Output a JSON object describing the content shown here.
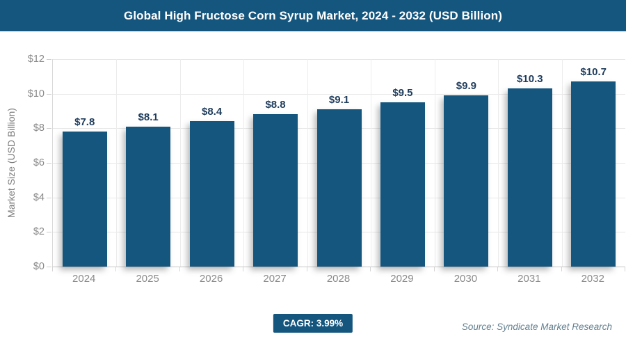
{
  "title_bar": {
    "title": "Global High Fructose Corn Syrup Market, 2024 - 2032 (USD Billion)",
    "bg_color": "#15567F",
    "text_color": "#FFFFFF"
  },
  "chart_data": {
    "type": "bar",
    "title": "Global High Fructose Corn Syrup Market, 2024 - 2032 (USD Billion)",
    "categories": [
      "2024",
      "2025",
      "2026",
      "2027",
      "2028",
      "2029",
      "2030",
      "2031",
      "2032"
    ],
    "values": [
      7.8,
      8.1,
      8.4,
      8.8,
      9.1,
      9.5,
      9.9,
      10.3,
      10.7
    ],
    "value_labels": [
      "$7.8",
      "$8.1",
      "$8.4",
      "$8.8",
      "$9.1",
      "$9.5",
      "$9.9",
      "$10.3",
      "$10.7"
    ],
    "xlabel": "",
    "ylabel": "Market Size (USD Billion)",
    "ylim": [
      0,
      12
    ],
    "ytick_step": 2,
    "ytick_labels": [
      "$0",
      "$2",
      "$4",
      "$6",
      "$8",
      "$10",
      "$12"
    ],
    "grid": true,
    "legend": "none",
    "bar_color": "#15567F",
    "value_label_color": "#1E3C5C",
    "axis_text_color": "#8A8A8A"
  },
  "footer": {
    "cagr_label": "CAGR: 3.99%",
    "cagr_bg": "#15567F",
    "source": "Source: Syndicate Market Research",
    "source_color": "#64808F"
  }
}
